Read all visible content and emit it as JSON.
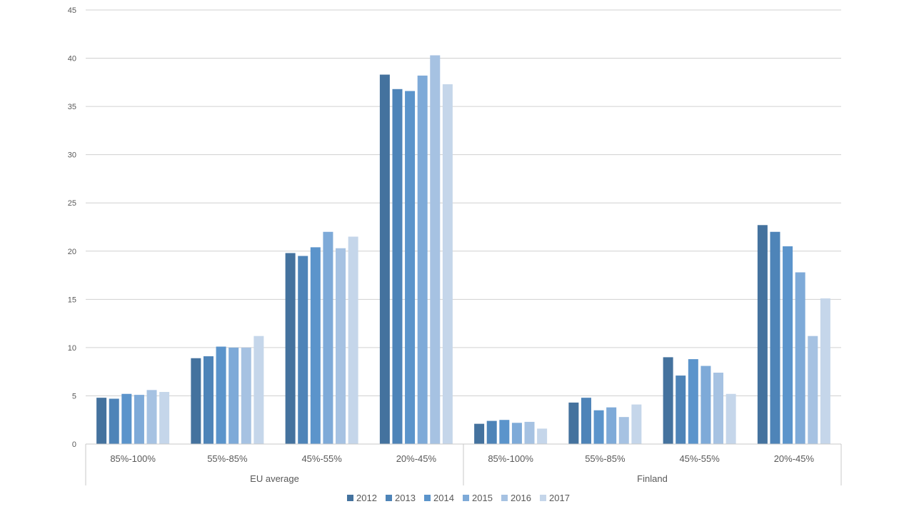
{
  "chart_data": {
    "type": "bar",
    "title": "",
    "xlabel": "",
    "ylabel": "",
    "ylim": [
      0,
      45
    ],
    "yticks": [
      0,
      5,
      10,
      15,
      20,
      25,
      30,
      35,
      40,
      45
    ],
    "grid": true,
    "legend_position": "bottom",
    "groups": [
      "EU average",
      "Finland"
    ],
    "categories": [
      "85%-100%",
      "55%-85%",
      "45%-55%",
      "20%-45%",
      "85%-100%",
      "55%-85%",
      "45%-55%",
      "20%-45%"
    ],
    "series": [
      {
        "name": "2012",
        "color": "#44729e",
        "values": [
          4.8,
          8.9,
          19.8,
          38.3,
          2.1,
          4.3,
          9.0,
          22.7
        ]
      },
      {
        "name": "2013",
        "color": "#4e84b8",
        "values": [
          4.7,
          9.1,
          19.5,
          36.8,
          2.4,
          4.8,
          7.1,
          22.0
        ]
      },
      {
        "name": "2014",
        "color": "#5b94cb",
        "values": [
          5.2,
          10.1,
          20.4,
          36.6,
          2.5,
          3.5,
          8.8,
          20.5
        ]
      },
      {
        "name": "2015",
        "color": "#7eaad8",
        "values": [
          5.1,
          10.0,
          22.0,
          38.2,
          2.2,
          3.8,
          8.1,
          17.8
        ]
      },
      {
        "name": "2016",
        "color": "#a6c2e2",
        "values": [
          5.6,
          10.0,
          20.3,
          40.3,
          2.3,
          2.8,
          7.4,
          11.2
        ]
      },
      {
        "name": "2017",
        "color": "#c5d6ea",
        "values": [
          5.4,
          11.2,
          21.5,
          37.3,
          1.6,
          4.1,
          5.2,
          15.1
        ]
      }
    ]
  }
}
